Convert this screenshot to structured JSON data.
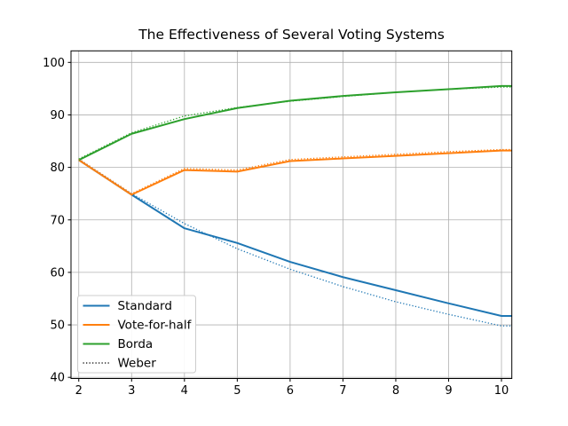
{
  "chart_data": {
    "type": "line",
    "title": "The Effectiveness of Several Voting Systems",
    "xlabel": "",
    "ylabel": "",
    "x": [
      2,
      3,
      4,
      5,
      6,
      7,
      8,
      9,
      10
    ],
    "xticks": [
      2,
      3,
      4,
      5,
      6,
      7,
      8,
      9,
      10
    ],
    "yticks": [
      40,
      50,
      60,
      70,
      80,
      90,
      100
    ],
    "xlim": [
      1.853,
      10.196
    ],
    "ylim": [
      39.78,
      102.2
    ],
    "grid": true,
    "grid_color": "#b0b0b0",
    "spine_color": "#000000",
    "background_color": "#ffffff",
    "legend_position": "lower left",
    "extend_flat_to_xmax": true,
    "series": [
      {
        "name": "Standard",
        "color": "#1f77b4",
        "style": "solid",
        "values": [
          81.4,
          74.8,
          68.4,
          65.6,
          62.0,
          59.1,
          56.6,
          54.1,
          51.7
        ]
      },
      {
        "name": "Vote-for-half",
        "color": "#ff7f0e",
        "style": "solid",
        "values": [
          81.4,
          74.8,
          79.5,
          79.2,
          81.2,
          81.7,
          82.2,
          82.7,
          83.2
        ]
      },
      {
        "name": "Borda",
        "color": "#2ca02c",
        "style": "solid",
        "values": [
          81.4,
          86.4,
          89.2,
          91.3,
          92.7,
          93.6,
          94.3,
          94.9,
          95.5
        ]
      },
      {
        "name": "Weber (Standard)",
        "color": "#1f77b4",
        "style": "dotted",
        "values": [
          81.6,
          75.0,
          69.3,
          64.5,
          60.6,
          57.3,
          54.4,
          52.0,
          49.8
        ]
      },
      {
        "name": "Weber (Vote-for-half)",
        "color": "#ff7f0e",
        "style": "dotted",
        "values": [
          81.6,
          75.0,
          79.8,
          79.5,
          81.5,
          82.0,
          82.5,
          83.0,
          83.4
        ]
      },
      {
        "name": "Weber (Borda)",
        "color": "#2ca02c",
        "style": "dotted",
        "values": [
          81.6,
          86.6,
          89.8,
          91.4,
          92.6,
          93.5,
          94.3,
          94.9,
          95.3
        ]
      }
    ],
    "legend": [
      {
        "label": "Standard",
        "color": "#1f77b4",
        "style": "solid"
      },
      {
        "label": "Vote-for-half",
        "color": "#ff7f0e",
        "style": "solid"
      },
      {
        "label": "Borda",
        "color": "#2ca02c",
        "style": "solid"
      },
      {
        "label": "Weber",
        "color": "#000000",
        "style": "dotted"
      }
    ]
  }
}
